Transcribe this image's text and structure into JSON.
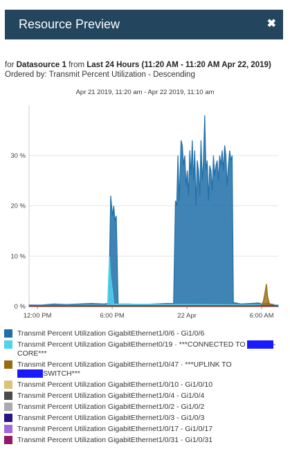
{
  "window": {
    "title": "Resource Preview",
    "close_icon": "close-icon"
  },
  "subinfo": {
    "for_label": "for",
    "datasource": "Datasource 1",
    "from_label": "from",
    "range": "Last 24 Hours (11:20 AM - 11:20 AM Apr 22, 2019)",
    "ordered": "Ordered by: Transmit Percent Utilization - Descending"
  },
  "chart_data": {
    "type": "area",
    "title": "Apr 21 2019, 11:20 am - Apr 22 2019, 11:10 am",
    "xlabel": "",
    "ylabel": "",
    "x_ticks": [
      "12:00 PM",
      "6:00 PM",
      "22 Apr",
      "6:00 AM"
    ],
    "y_ticks": [
      "0 %",
      "10 %",
      "20 %",
      "30 %"
    ],
    "ylim": [
      0,
      40
    ],
    "x_unit": "hours since 11:20 AM Apr 21",
    "grid": true,
    "series": [
      {
        "name": "Transmit Percent Utilization GigabitEthernet1/0/6 - Gi1/0/6",
        "color": "#1f6fa8",
        "points": [
          [
            0,
            0.3
          ],
          [
            1,
            0.3
          ],
          [
            2,
            0.5
          ],
          [
            3,
            0.4
          ],
          [
            4,
            0.5
          ],
          [
            5,
            0.6
          ],
          [
            6,
            0.5
          ],
          [
            6.4,
            0.6
          ],
          [
            6.55,
            22
          ],
          [
            6.7,
            18
          ],
          [
            6.8,
            20
          ],
          [
            6.9,
            17
          ],
          [
            7.0,
            18
          ],
          [
            7.15,
            0.5
          ],
          [
            8,
            0.5
          ],
          [
            9,
            0.4
          ],
          [
            10,
            0.5
          ],
          [
            11,
            0.6
          ],
          [
            11.6,
            0.6
          ],
          [
            11.75,
            21
          ],
          [
            11.85,
            20
          ],
          [
            11.95,
            30
          ],
          [
            12.05,
            21
          ],
          [
            12.2,
            33
          ],
          [
            12.3,
            32
          ],
          [
            12.4,
            28
          ],
          [
            12.5,
            30
          ],
          [
            12.6,
            24
          ],
          [
            12.7,
            27
          ],
          [
            12.8,
            22
          ],
          [
            12.9,
            31
          ],
          [
            13.0,
            26
          ],
          [
            13.1,
            33
          ],
          [
            13.2,
            25
          ],
          [
            13.3,
            31
          ],
          [
            13.4,
            20
          ],
          [
            13.5,
            29
          ],
          [
            13.6,
            27
          ],
          [
            13.7,
            22
          ],
          [
            13.8,
            33
          ],
          [
            13.9,
            25
          ],
          [
            14.0,
            29
          ],
          [
            14.1,
            38
          ],
          [
            14.2,
            27
          ],
          [
            14.3,
            29
          ],
          [
            14.4,
            21
          ],
          [
            14.5,
            28
          ],
          [
            14.6,
            27
          ],
          [
            14.7,
            23
          ],
          [
            14.8,
            30
          ],
          [
            14.9,
            26
          ],
          [
            15.0,
            28
          ],
          [
            15.1,
            29
          ],
          [
            15.2,
            25
          ],
          [
            15.3,
            30
          ],
          [
            15.4,
            28
          ],
          [
            15.5,
            31
          ],
          [
            15.6,
            27
          ],
          [
            15.7,
            32
          ],
          [
            15.8,
            30
          ],
          [
            15.9,
            24
          ],
          [
            16.0,
            28
          ],
          [
            16.1,
            31
          ],
          [
            16.2,
            29
          ],
          [
            16.3,
            30
          ],
          [
            16.4,
            0.8
          ],
          [
            17,
            0.5
          ],
          [
            17.8,
            0.6
          ],
          [
            18.4,
            0.7
          ],
          [
            18.7,
            0.5
          ],
          [
            19.2,
            0.6
          ],
          [
            19.8,
            0.3
          ],
          [
            20.0,
            0.3
          ]
        ]
      },
      {
        "name": "Transmit Percent Utilization GigabitEthernet0/19 · ***CONNECTED TO CORE***",
        "color": "#4fd4ee",
        "points": [
          [
            0,
            0.2
          ],
          [
            6.3,
            0.3
          ],
          [
            6.45,
            10
          ],
          [
            6.55,
            6
          ],
          [
            6.7,
            3
          ],
          [
            6.8,
            0.5
          ],
          [
            20,
            0.3
          ]
        ]
      },
      {
        "name": "Transmit Percent Utilization GigabitEthernet1/0/47 · ***UPLINK TO SWITCH***",
        "color": "#9a6a10",
        "points": [
          [
            0,
            0
          ],
          [
            18.6,
            0
          ],
          [
            18.8,
            1
          ],
          [
            18.95,
            3
          ],
          [
            19.05,
            4.5
          ],
          [
            19.15,
            2
          ],
          [
            19.3,
            0.5
          ],
          [
            20,
            0
          ]
        ]
      },
      {
        "name": "Transmit Percent Utilization GigabitEthernet1/0/10 - Gi1/0/10",
        "color": "#d9c47a",
        "points": []
      },
      {
        "name": "Transmit Percent Utilization GigabitEthernet1/0/4 - Gi1/0/4",
        "color": "#4b4b4b",
        "points": []
      },
      {
        "name": "Transmit Percent Utilization GigabitEthernet1/0/2 - Gi1/0/2",
        "color": "#aaaaaa",
        "points": []
      },
      {
        "name": "Transmit Percent Utilization GigabitEthernet1/0/3 - Gi1/0/3",
        "color": "#2c1580",
        "points": []
      },
      {
        "name": "Transmit Percent Utilization GigabitEthernet1/0/17 - Gi1/0/17",
        "color": "#a06ad8",
        "points": []
      },
      {
        "name": "Transmit Percent Utilization GigabitEthernet1/0/31 - Gi1/0/31",
        "color": "#8e1b6a",
        "points": []
      }
    ]
  },
  "legend": [
    {
      "text": "Transmit Percent Utilization GigabitEthernet1/0/6 - Gi1/0/6",
      "color": "#1f6fa8"
    },
    {
      "text": "Transmit Percent Utilization GigabitEthernet0/19 · ***CONNECTED TO ",
      "text2": "-CORE***",
      "color": "#4fd4ee",
      "redacted": true
    },
    {
      "text": "Transmit Percent Utilization GigabitEthernet1/0/47 · ***UPLINK TO ",
      "text2": "SWITCH***",
      "color": "#9a6a10",
      "redacted": true
    },
    {
      "text": "Transmit Percent Utilization GigabitEthernet1/0/10 - Gi1/0/10",
      "color": "#d9c47a"
    },
    {
      "text": "Transmit Percent Utilization GigabitEthernet1/0/4 - Gi1/0/4",
      "color": "#4b4b4b"
    },
    {
      "text": "Transmit Percent Utilization GigabitEthernet1/0/2 - Gi1/0/2",
      "color": "#aaaaaa"
    },
    {
      "text": "Transmit Percent Utilization GigabitEthernet1/0/3 - Gi1/0/3",
      "color": "#2c1580"
    },
    {
      "text": "Transmit Percent Utilization GigabitEthernet1/0/17 - Gi1/0/17",
      "color": "#a06ad8"
    },
    {
      "text": "Transmit Percent Utilization GigabitEthernet1/0/31 - Gi1/0/31",
      "color": "#8e1b6a"
    }
  ]
}
